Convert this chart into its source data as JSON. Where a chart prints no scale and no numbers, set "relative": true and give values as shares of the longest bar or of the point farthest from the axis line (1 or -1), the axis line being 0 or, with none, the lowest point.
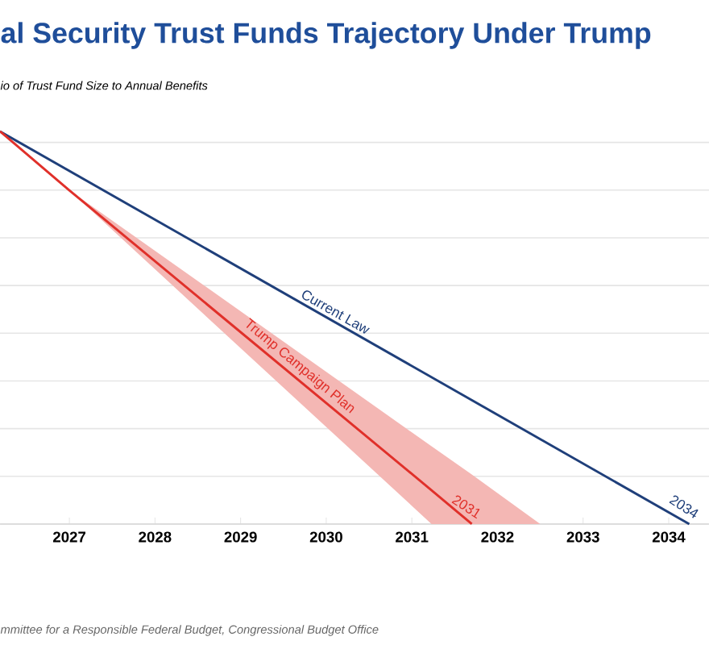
{
  "chart_data": {
    "type": "line",
    "title": "al Security Trust Funds Trajectory Under Trump",
    "subtitle": "io of Trust Fund Size to Annual Benefits",
    "relative": true,
    "grid": "y",
    "tick_labels": "x",
    "xlim": [
      2026.19,
      2034.47
    ],
    "xticks": [
      2027,
      2028,
      2029,
      2030,
      2031,
      2032,
      2033,
      2034
    ],
    "series": [
      {
        "name": "Current Law",
        "color": "#1f3f7a",
        "x": [
          2026.19,
          2034.24
        ],
        "values": [
          1,
          0
        ]
      },
      {
        "name": "Trump Campaign Plan",
        "color": "#e0302a",
        "x": [
          2026.19,
          2027,
          2031.23,
          2031.7,
          2032.5
        ],
        "values": [
          1,
          0.85,
          0.086,
          0,
          null
        ],
        "lower": [
          1,
          0.85,
          0,
          0,
          0
        ],
        "upper": [
          1,
          0.85,
          0.198,
          0.126,
          0
        ]
      }
    ],
    "annotations": [
      {
        "text": "2031",
        "x": 2031.7,
        "y": 0
      },
      {
        "text": "2034",
        "x": 2034.24,
        "y": 0
      },
      "mmittee for a Responsible Federal Budget, Congressional Budget Office"
    ]
  }
}
